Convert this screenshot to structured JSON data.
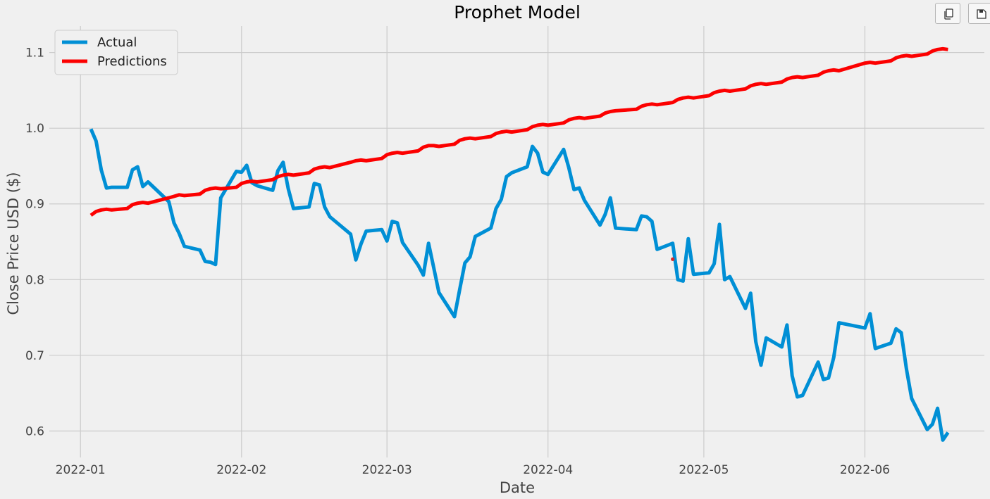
{
  "toolbar": {
    "copy_icon": "copy-icon",
    "save_icon": "save-icon"
  },
  "chart_data": {
    "type": "line",
    "title": "Prophet Model",
    "xlabel": "Date",
    "ylabel": "Close Price USD ($)",
    "xlim": [
      "2021-12-26",
      "2022-06-24"
    ],
    "ylim": [
      0.565,
      1.135
    ],
    "x_ticks": [
      "2022-01",
      "2022-02",
      "2022-03",
      "2022-04",
      "2022-05",
      "2022-06"
    ],
    "y_ticks": [
      0.6,
      0.7,
      0.8,
      0.9,
      1.0,
      1.1
    ],
    "grid": true,
    "legend": {
      "placement": "top-left",
      "entries": [
        "Actual",
        "Predictions"
      ]
    },
    "series": [
      {
        "name": "Actual",
        "color": "#008fd5",
        "points": [
          [
            "2022-01-03",
            0.999
          ],
          [
            "2022-01-04",
            0.983
          ],
          [
            "2022-01-05",
            0.945
          ],
          [
            "2022-01-06",
            0.921
          ],
          [
            "2022-01-07",
            0.922
          ],
          [
            "2022-01-10",
            0.922
          ],
          [
            "2022-01-11",
            0.945
          ],
          [
            "2022-01-12",
            0.949
          ],
          [
            "2022-01-13",
            0.923
          ],
          [
            "2022-01-14",
            0.929
          ],
          [
            "2022-01-18",
            0.903
          ],
          [
            "2022-01-19",
            0.875
          ],
          [
            "2022-01-20",
            0.861
          ],
          [
            "2022-01-21",
            0.844
          ],
          [
            "2022-01-24",
            0.839
          ],
          [
            "2022-01-25",
            0.824
          ],
          [
            "2022-01-26",
            0.823
          ],
          [
            "2022-01-27",
            0.82
          ],
          [
            "2022-01-28",
            0.908
          ],
          [
            "2022-01-31",
            0.943
          ],
          [
            "2022-02-01",
            0.942
          ],
          [
            "2022-02-02",
            0.951
          ],
          [
            "2022-02-03",
            0.928
          ],
          [
            "2022-02-04",
            0.924
          ],
          [
            "2022-02-07",
            0.918
          ],
          [
            "2022-02-08",
            0.944
          ],
          [
            "2022-02-09",
            0.955
          ],
          [
            "2022-02-10",
            0.92
          ],
          [
            "2022-02-11",
            0.894
          ],
          [
            "2022-02-14",
            0.896
          ],
          [
            "2022-02-15",
            0.927
          ],
          [
            "2022-02-16",
            0.925
          ],
          [
            "2022-02-17",
            0.896
          ],
          [
            "2022-02-18",
            0.883
          ],
          [
            "2022-02-22",
            0.86
          ],
          [
            "2022-02-23",
            0.826
          ],
          [
            "2022-02-24",
            0.847
          ],
          [
            "2022-02-25",
            0.864
          ],
          [
            "2022-02-28",
            0.866
          ],
          [
            "2022-03-01",
            0.851
          ],
          [
            "2022-03-02",
            0.877
          ],
          [
            "2022-03-03",
            0.875
          ],
          [
            "2022-03-04",
            0.849
          ],
          [
            "2022-03-07",
            0.819
          ],
          [
            "2022-03-08",
            0.806
          ],
          [
            "2022-03-09",
            0.848
          ],
          [
            "2022-03-10",
            0.816
          ],
          [
            "2022-03-11",
            0.783
          ],
          [
            "2022-03-14",
            0.751
          ],
          [
            "2022-03-15",
            0.787
          ],
          [
            "2022-03-16",
            0.822
          ],
          [
            "2022-03-17",
            0.83
          ],
          [
            "2022-03-18",
            0.857
          ],
          [
            "2022-03-21",
            0.868
          ],
          [
            "2022-03-22",
            0.894
          ],
          [
            "2022-03-23",
            0.906
          ],
          [
            "2022-03-24",
            0.936
          ],
          [
            "2022-03-25",
            0.941
          ],
          [
            "2022-03-28",
            0.949
          ],
          [
            "2022-03-29",
            0.976
          ],
          [
            "2022-03-30",
            0.967
          ],
          [
            "2022-03-31",
            0.942
          ],
          [
            "2022-04-01",
            0.939
          ],
          [
            "2022-04-04",
            0.972
          ],
          [
            "2022-04-05",
            0.948
          ],
          [
            "2022-04-06",
            0.919
          ],
          [
            "2022-04-07",
            0.921
          ],
          [
            "2022-04-08",
            0.905
          ],
          [
            "2022-04-11",
            0.872
          ],
          [
            "2022-04-12",
            0.886
          ],
          [
            "2022-04-13",
            0.908
          ],
          [
            "2022-04-14",
            0.868
          ],
          [
            "2022-04-18",
            0.866
          ],
          [
            "2022-04-19",
            0.884
          ],
          [
            "2022-04-20",
            0.883
          ],
          [
            "2022-04-21",
            0.877
          ],
          [
            "2022-04-22",
            0.84
          ],
          [
            "2022-04-25",
            0.848
          ],
          [
            "2022-04-26",
            0.8
          ],
          [
            "2022-04-27",
            0.798
          ],
          [
            "2022-04-28",
            0.854
          ],
          [
            "2022-04-29",
            0.807
          ],
          [
            "2022-05-02",
            0.809
          ],
          [
            "2022-05-03",
            0.821
          ],
          [
            "2022-05-04",
            0.873
          ],
          [
            "2022-05-05",
            0.8
          ],
          [
            "2022-05-06",
            0.804
          ],
          [
            "2022-05-09",
            0.762
          ],
          [
            "2022-05-10",
            0.782
          ],
          [
            "2022-05-11",
            0.718
          ],
          [
            "2022-05-12",
            0.687
          ],
          [
            "2022-05-13",
            0.723
          ],
          [
            "2022-05-16",
            0.711
          ],
          [
            "2022-05-17",
            0.74
          ],
          [
            "2022-05-18",
            0.673
          ],
          [
            "2022-05-19",
            0.645
          ],
          [
            "2022-05-20",
            0.647
          ],
          [
            "2022-05-23",
            0.691
          ],
          [
            "2022-05-24",
            0.668
          ],
          [
            "2022-05-25",
            0.67
          ],
          [
            "2022-05-26",
            0.697
          ],
          [
            "2022-05-27",
            0.743
          ],
          [
            "2022-06-01",
            0.736
          ],
          [
            "2022-06-02",
            0.755
          ],
          [
            "2022-06-03",
            0.709
          ],
          [
            "2022-06-06",
            0.716
          ],
          [
            "2022-06-07",
            0.735
          ],
          [
            "2022-06-08",
            0.73
          ],
          [
            "2022-06-09",
            0.682
          ],
          [
            "2022-06-10",
            0.643
          ],
          [
            "2022-06-13",
            0.602
          ],
          [
            "2022-06-14",
            0.609
          ],
          [
            "2022-06-15",
            0.63
          ],
          [
            "2022-06-16",
            0.588
          ],
          [
            "2022-06-17",
            0.598
          ]
        ]
      },
      {
        "name": "Predictions",
        "color": "#fc0000",
        "points": [
          [
            "2022-01-03",
            0.885
          ],
          [
            "2022-01-04",
            0.89
          ],
          [
            "2022-01-05",
            0.892
          ],
          [
            "2022-01-06",
            0.893
          ],
          [
            "2022-01-07",
            0.892
          ],
          [
            "2022-01-10",
            0.894
          ],
          [
            "2022-01-11",
            0.899
          ],
          [
            "2022-01-12",
            0.901
          ],
          [
            "2022-01-13",
            0.902
          ],
          [
            "2022-01-14",
            0.901
          ],
          [
            "2022-01-18",
            0.908
          ],
          [
            "2022-01-19",
            0.91
          ],
          [
            "2022-01-20",
            0.912
          ],
          [
            "2022-01-21",
            0.911
          ],
          [
            "2022-01-24",
            0.913
          ],
          [
            "2022-01-25",
            0.918
          ],
          [
            "2022-01-26",
            0.92
          ],
          [
            "2022-01-27",
            0.921
          ],
          [
            "2022-01-28",
            0.92
          ],
          [
            "2022-01-31",
            0.922
          ],
          [
            "2022-02-01",
            0.927
          ],
          [
            "2022-02-02",
            0.929
          ],
          [
            "2022-02-03",
            0.93
          ],
          [
            "2022-02-04",
            0.929
          ],
          [
            "2022-02-07",
            0.932
          ],
          [
            "2022-02-08",
            0.936
          ],
          [
            "2022-02-09",
            0.938
          ],
          [
            "2022-02-10",
            0.939
          ],
          [
            "2022-02-11",
            0.938
          ],
          [
            "2022-02-14",
            0.941
          ],
          [
            "2022-02-15",
            0.946
          ],
          [
            "2022-02-16",
            0.948
          ],
          [
            "2022-02-17",
            0.949
          ],
          [
            "2022-02-18",
            0.948
          ],
          [
            "2022-02-22",
            0.955
          ],
          [
            "2022-02-23",
            0.957
          ],
          [
            "2022-02-24",
            0.958
          ],
          [
            "2022-02-25",
            0.957
          ],
          [
            "2022-02-28",
            0.96
          ],
          [
            "2022-03-01",
            0.965
          ],
          [
            "2022-03-02",
            0.967
          ],
          [
            "2022-03-03",
            0.968
          ],
          [
            "2022-03-04",
            0.967
          ],
          [
            "2022-03-07",
            0.97
          ],
          [
            "2022-03-08",
            0.975
          ],
          [
            "2022-03-09",
            0.977
          ],
          [
            "2022-03-10",
            0.977
          ],
          [
            "2022-03-11",
            0.976
          ],
          [
            "2022-03-14",
            0.979
          ],
          [
            "2022-03-15",
            0.984
          ],
          [
            "2022-03-16",
            0.986
          ],
          [
            "2022-03-17",
            0.987
          ],
          [
            "2022-03-18",
            0.986
          ],
          [
            "2022-03-21",
            0.989
          ],
          [
            "2022-03-22",
            0.993
          ],
          [
            "2022-03-23",
            0.995
          ],
          [
            "2022-03-24",
            0.996
          ],
          [
            "2022-03-25",
            0.995
          ],
          [
            "2022-03-28",
            0.998
          ],
          [
            "2022-03-29",
            1.002
          ],
          [
            "2022-03-30",
            1.004
          ],
          [
            "2022-03-31",
            1.005
          ],
          [
            "2022-04-01",
            1.004
          ],
          [
            "2022-04-04",
            1.007
          ],
          [
            "2022-04-05",
            1.011
          ],
          [
            "2022-04-06",
            1.013
          ],
          [
            "2022-04-07",
            1.014
          ],
          [
            "2022-04-08",
            1.013
          ],
          [
            "2022-04-11",
            1.016
          ],
          [
            "2022-04-12",
            1.02
          ],
          [
            "2022-04-13",
            1.022
          ],
          [
            "2022-04-14",
            1.023
          ],
          [
            "2022-04-18",
            1.025
          ],
          [
            "2022-04-19",
            1.029
          ],
          [
            "2022-04-20",
            1.031
          ],
          [
            "2022-04-21",
            1.032
          ],
          [
            "2022-04-22",
            1.031
          ],
          [
            "2022-04-25",
            1.034
          ],
          [
            "2022-04-26",
            1.038
          ],
          [
            "2022-04-27",
            1.04
          ],
          [
            "2022-04-28",
            1.041
          ],
          [
            "2022-04-29",
            1.04
          ],
          [
            "2022-05-02",
            1.043
          ],
          [
            "2022-05-03",
            1.047
          ],
          [
            "2022-05-04",
            1.049
          ],
          [
            "2022-05-05",
            1.05
          ],
          [
            "2022-05-06",
            1.049
          ],
          [
            "2022-05-09",
            1.052
          ],
          [
            "2022-05-10",
            1.056
          ],
          [
            "2022-05-11",
            1.058
          ],
          [
            "2022-05-12",
            1.059
          ],
          [
            "2022-05-13",
            1.058
          ],
          [
            "2022-05-16",
            1.061
          ],
          [
            "2022-05-17",
            1.065
          ],
          [
            "2022-05-18",
            1.067
          ],
          [
            "2022-05-19",
            1.068
          ],
          [
            "2022-05-20",
            1.067
          ],
          [
            "2022-05-23",
            1.07
          ],
          [
            "2022-05-24",
            1.074
          ],
          [
            "2022-05-25",
            1.076
          ],
          [
            "2022-05-26",
            1.077
          ],
          [
            "2022-05-27",
            1.076
          ],
          [
            "2022-06-01",
            1.086
          ],
          [
            "2022-06-02",
            1.087
          ],
          [
            "2022-06-03",
            1.086
          ],
          [
            "2022-06-06",
            1.089
          ],
          [
            "2022-06-07",
            1.093
          ],
          [
            "2022-06-08",
            1.095
          ],
          [
            "2022-06-09",
            1.096
          ],
          [
            "2022-06-10",
            1.095
          ],
          [
            "2022-06-13",
            1.098
          ],
          [
            "2022-06-14",
            1.102
          ],
          [
            "2022-06-15",
            1.104
          ],
          [
            "2022-06-16",
            1.105
          ],
          [
            "2022-06-17",
            1.104
          ]
        ]
      }
    ],
    "annotations": [
      {
        "type": "point",
        "x": "2022-04-25",
        "y": 0.827,
        "color": "#d62728"
      }
    ]
  }
}
